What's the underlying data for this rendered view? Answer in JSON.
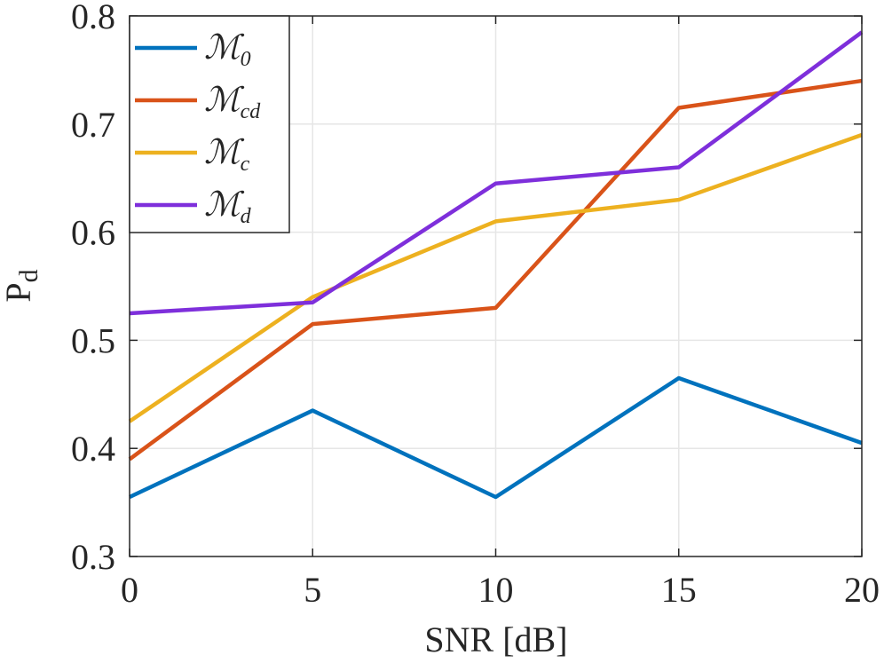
{
  "chart_data": {
    "type": "line",
    "title": "",
    "xlabel": "SNR [dB]",
    "ylabel_main": "P",
    "ylabel_sub": "d",
    "x": [
      0,
      5,
      10,
      15,
      20
    ],
    "xlim": [
      0,
      20
    ],
    "ylim": [
      0.3,
      0.8
    ],
    "xticks": [
      0,
      5,
      10,
      15,
      20
    ],
    "yticks": [
      0.3,
      0.4,
      0.5,
      0.6,
      0.7,
      0.8
    ],
    "xtick_labels": [
      "0",
      "5",
      "10",
      "15",
      "20"
    ],
    "ytick_labels": [
      "0.3",
      "0.4",
      "0.5",
      "0.6",
      "0.7",
      "0.8"
    ],
    "grid": true,
    "legend_position": "top-left",
    "series": [
      {
        "name": "M0",
        "label_main": "ℳ",
        "label_sub": "0",
        "color": "#0072BD",
        "values": [
          0.355,
          0.435,
          0.355,
          0.465,
          0.405
        ]
      },
      {
        "name": "Mcd",
        "label_main": "ℳ",
        "label_sub": "cd",
        "color": "#D95319",
        "values": [
          0.39,
          0.515,
          0.53,
          0.715,
          0.74
        ]
      },
      {
        "name": "Mc",
        "label_main": "ℳ",
        "label_sub": "c",
        "color": "#EDB120",
        "values": [
          0.425,
          0.54,
          0.61,
          0.63,
          0.69
        ]
      },
      {
        "name": "Md",
        "label_main": "ℳ",
        "label_sub": "d",
        "color": "#7E2FDB",
        "values": [
          0.525,
          0.535,
          0.645,
          0.66,
          0.785
        ]
      }
    ]
  }
}
